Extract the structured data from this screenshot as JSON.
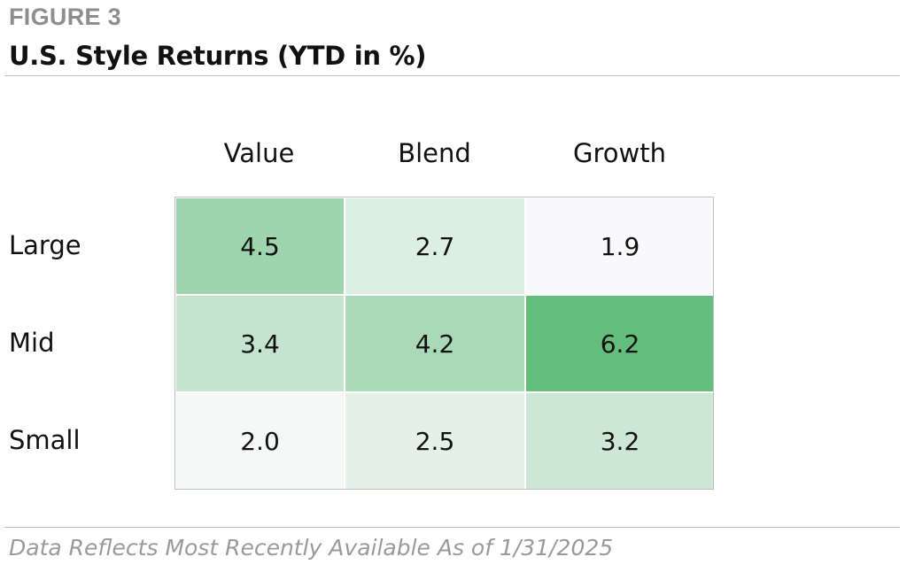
{
  "figure_label": "FIGURE 3",
  "title": "U.S. Style Returns (YTD in %)",
  "footnote": "Data Reflects Most Recently Available As of 1/31/2025",
  "colors": {
    "low": "#f9f9fb",
    "high": "#63be7b",
    "text": "#111111",
    "muted": "#8e8e8e"
  },
  "chart_data": {
    "type": "heatmap",
    "title": "U.S. Style Returns (YTD in %)",
    "columns": [
      "Value",
      "Blend",
      "Growth"
    ],
    "rows": [
      "Large",
      "Mid",
      "Small"
    ],
    "values": [
      [
        4.5,
        2.7,
        1.9
      ],
      [
        3.4,
        4.2,
        6.2
      ],
      [
        2.0,
        2.5,
        3.2
      ]
    ],
    "value_labels": [
      [
        "4.5",
        "2.7",
        "1.9"
      ],
      [
        "3.4",
        "4.2",
        "6.2"
      ],
      [
        "2.0",
        "2.5",
        "3.2"
      ]
    ],
    "color_scale": "white-to-green"
  }
}
